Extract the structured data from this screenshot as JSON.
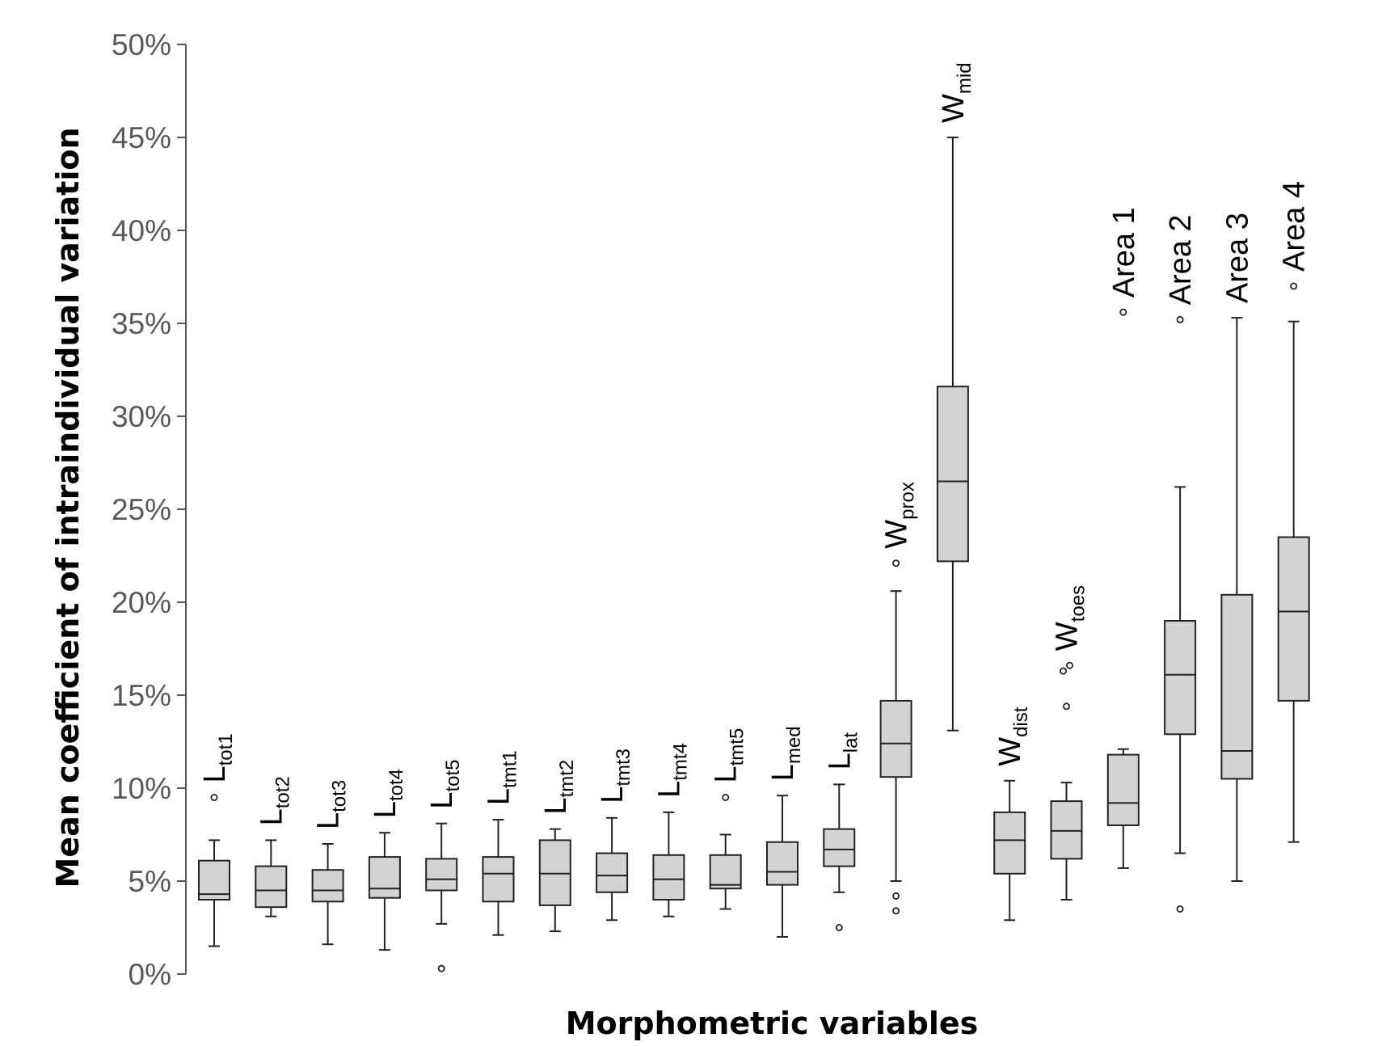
{
  "chart_data": {
    "type": "boxplot",
    "title": "",
    "xlabel": "Morphometric variables",
    "ylabel": "Mean coefficient of intraindividual variation",
    "ylim": [
      0,
      50
    ],
    "y_unit": "%",
    "yticks": [
      0,
      5,
      10,
      15,
      20,
      25,
      30,
      35,
      40,
      45,
      50
    ],
    "ytick_labels": [
      "0%",
      "5%",
      "10%",
      "15%",
      "20%",
      "25%",
      "30%",
      "35%",
      "40%",
      "45%",
      "50%"
    ],
    "grid": false,
    "legend": "none",
    "box_fill": "#d3d3d3",
    "box_stroke": "#222222",
    "categories": [
      {
        "main": "L",
        "sub": "tot1",
        "min": 1.5,
        "q1": 4.0,
        "median": 4.3,
        "q3": 6.1,
        "max": 7.2,
        "outliers": [
          9.5
        ]
      },
      {
        "main": "L",
        "sub": "tot2",
        "min": 3.1,
        "q1": 3.6,
        "median": 4.5,
        "q3": 5.8,
        "max": 7.2,
        "outliers": []
      },
      {
        "main": "L",
        "sub": "tot3",
        "min": 1.6,
        "q1": 3.9,
        "median": 4.5,
        "q3": 5.6,
        "max": 7.0,
        "outliers": []
      },
      {
        "main": "L",
        "sub": "tot4",
        "min": 1.3,
        "q1": 4.1,
        "median": 4.6,
        "q3": 6.3,
        "max": 7.6,
        "outliers": []
      },
      {
        "main": "L",
        "sub": "tot5",
        "min": 2.7,
        "q1": 4.5,
        "median": 5.1,
        "q3": 6.2,
        "max": 8.1,
        "outliers": [
          0.3
        ]
      },
      {
        "main": "L",
        "sub": "tmt1",
        "min": 2.1,
        "q1": 3.9,
        "median": 5.4,
        "q3": 6.3,
        "max": 8.3,
        "outliers": []
      },
      {
        "main": "L",
        "sub": "tmt2",
        "min": 2.3,
        "q1": 3.7,
        "median": 5.4,
        "q3": 7.2,
        "max": 7.8,
        "outliers": []
      },
      {
        "main": "L",
        "sub": "tmt3",
        "min": 2.9,
        "q1": 4.4,
        "median": 5.3,
        "q3": 6.5,
        "max": 8.4,
        "outliers": []
      },
      {
        "main": "L",
        "sub": "tmt4",
        "min": 3.1,
        "q1": 4.0,
        "median": 5.1,
        "q3": 6.4,
        "max": 8.7,
        "outliers": []
      },
      {
        "main": "L",
        "sub": "tmt5",
        "min": 3.5,
        "q1": 4.6,
        "median": 4.8,
        "q3": 6.4,
        "max": 7.5,
        "outliers": [
          9.5
        ]
      },
      {
        "main": "L",
        "sub": "med",
        "min": 2.0,
        "q1": 4.8,
        "median": 5.5,
        "q3": 7.1,
        "max": 9.6,
        "outliers": []
      },
      {
        "main": "L",
        "sub": "lat",
        "min": 4.4,
        "q1": 5.8,
        "median": 6.7,
        "q3": 7.8,
        "max": 10.2,
        "outliers": [
          2.5
        ]
      },
      {
        "main": "W",
        "sub": "prox",
        "min": 5.0,
        "q1": 10.6,
        "median": 12.4,
        "q3": 14.7,
        "max": 20.6,
        "outliers": [
          22.1,
          4.2,
          3.4
        ]
      },
      {
        "main": "W",
        "sub": "mid",
        "min": 13.1,
        "q1": 22.2,
        "median": 26.5,
        "q3": 31.6,
        "max": 45.0,
        "outliers": []
      },
      {
        "main": "W",
        "sub": "dist",
        "min": 2.9,
        "q1": 5.4,
        "median": 7.2,
        "q3": 8.7,
        "max": 10.4,
        "outliers": []
      },
      {
        "main": "W",
        "sub": "toes",
        "min": 4.0,
        "q1": 6.2,
        "median": 7.7,
        "q3": 9.3,
        "max": 10.3,
        "outliers": [
          16.6,
          16.3,
          14.4
        ]
      },
      {
        "main": "Area 1",
        "sub": "",
        "min": 5.7,
        "q1": 8.0,
        "median": 9.2,
        "q3": 11.8,
        "max": 12.1,
        "outliers": [
          35.6
        ]
      },
      {
        "main": "Area 2",
        "sub": "",
        "min": 6.5,
        "q1": 12.9,
        "median": 16.1,
        "q3": 19.0,
        "max": 26.2,
        "outliers": [
          35.2,
          3.5
        ]
      },
      {
        "main": "Area 3",
        "sub": "",
        "min": 5.0,
        "q1": 10.5,
        "median": 12.0,
        "q3": 20.4,
        "max": 35.3,
        "outliers": []
      },
      {
        "main": "Area 4",
        "sub": "",
        "min": 7.1,
        "q1": 14.7,
        "median": 19.5,
        "q3": 23.5,
        "max": 35.1,
        "outliers": [
          37.0
        ]
      }
    ]
  }
}
